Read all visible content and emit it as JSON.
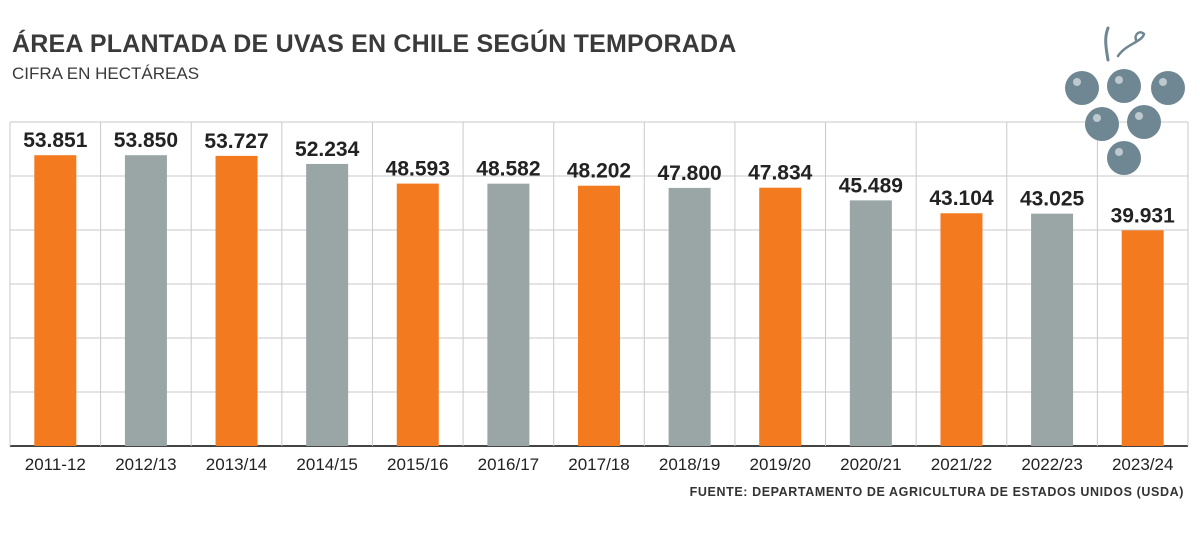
{
  "chart_data": {
    "type": "bar",
    "title": "ÁREA PLANTADA DE UVAS EN CHILE SEGÚN TEMPORADA",
    "subtitle": "CIFRA EN HECTÁREAS",
    "source": "FUENTE: DEPARTAMENTO DE AGRICULTURA DE ESTADOS UNIDOS (USDA)",
    "categories": [
      "2011-12",
      "2012/13",
      "2013/14",
      "2014/15",
      "2015/16",
      "2016/17",
      "2017/18",
      "2018/19",
      "2019/20",
      "2020/21",
      "2021/22",
      "2022/23",
      "2023/24"
    ],
    "values": [
      53851,
      53850,
      53727,
      52234,
      48593,
      48582,
      48202,
      47800,
      47834,
      45489,
      43104,
      43025,
      39931
    ],
    "value_labels": [
      "53.851",
      "53.850",
      "53.727",
      "52.234",
      "48.593",
      "48.582",
      "48.202",
      "47.800",
      "47.834",
      "45.489",
      "43.104",
      "43.025",
      "39.931"
    ],
    "ylim": [
      0,
      60000
    ],
    "grid": true,
    "legend": "none",
    "colors": {
      "orange": "#f47a20",
      "gray": "#9aa5a6",
      "grid": "#c9c9c9",
      "axis": "#444444",
      "grape": "#6e8793"
    }
  }
}
